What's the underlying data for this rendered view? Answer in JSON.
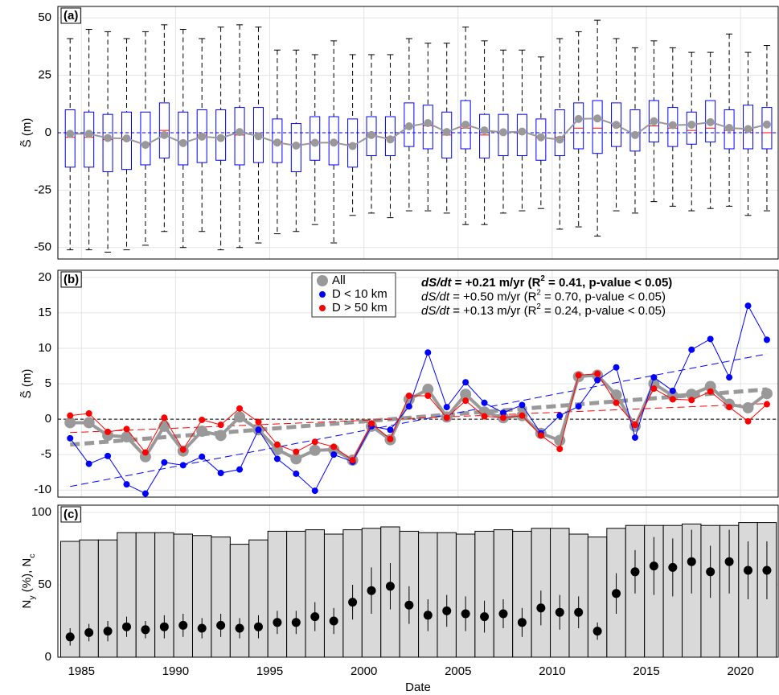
{
  "chart_data": [
    {
      "type": "box",
      "label": "(a)",
      "ylabel": "S̃ (m)",
      "x": [
        1984.4,
        1985.4,
        1986.4,
        1987.4,
        1988.4,
        1989.4,
        1990.4,
        1991.4,
        1992.4,
        1993.4,
        1994.4,
        1995.4,
        1996.4,
        1997.4,
        1998.4,
        1999.4,
        2000.4,
        2001.4,
        2002.4,
        2003.4,
        2004.4,
        2005.4,
        2006.4,
        2007.4,
        2008.4,
        2009.4,
        2010.4,
        2011.4,
        2012.4,
        2013.4,
        2014.4,
        2015.4,
        2016.4,
        2017.4,
        2018.4,
        2019.4,
        2020.4,
        2021.4
      ],
      "whishi": [
        41,
        45,
        44,
        41,
        44,
        47,
        45,
        41,
        46,
        47,
        46,
        36,
        36,
        34,
        40,
        34,
        34,
        34,
        41,
        39,
        39,
        46,
        40,
        36,
        36,
        33,
        41,
        44,
        49,
        41,
        37,
        40,
        37,
        35,
        35,
        43,
        35,
        38
      ],
      "q3": [
        10,
        9,
        8,
        9,
        9,
        13,
        9,
        10,
        10,
        11,
        11,
        6,
        4,
        7,
        7,
        6,
        7,
        7,
        13,
        12,
        9,
        14,
        8,
        8,
        8,
        6,
        10,
        13,
        14,
        13,
        10,
        14,
        11,
        9,
        14,
        10,
        12,
        11
      ],
      "med": [
        -2,
        -2,
        -3,
        -3,
        -5,
        1,
        -4,
        -1,
        -2,
        -1,
        -1,
        -4,
        -5,
        -4,
        -4,
        -5,
        -1,
        -2,
        3,
        3,
        -1,
        2,
        -1,
        0,
        0,
        -2,
        -2,
        2,
        2,
        3,
        0,
        3,
        2,
        1,
        2,
        1,
        1,
        0
      ],
      "q1": [
        -15,
        -15,
        -17,
        -16,
        -14,
        -11,
        -14,
        -13,
        -12,
        -14,
        -13,
        -13,
        -17,
        -12,
        -14,
        -15,
        -10,
        -10,
        -6,
        -7,
        -11,
        -7,
        -11,
        -10,
        -10,
        -12,
        -10,
        -7,
        -9,
        -6,
        -8,
        -4,
        -6,
        -5,
        -4,
        -7,
        -7,
        -7
      ],
      "whislo": [
        -51,
        -51,
        -52,
        -51,
        -49,
        -43,
        -50,
        -43,
        -51,
        -50,
        -48,
        -44,
        -43,
        -40,
        -48,
        -36,
        -35,
        -37,
        -34,
        -34,
        -35,
        -40,
        -40,
        -35,
        -34,
        -33,
        -42,
        -41,
        -45,
        -34,
        -35,
        -30,
        -32,
        -34,
        -33,
        -32,
        -36,
        -34
      ],
      "mean": [
        -0.5,
        -0.5,
        -2.3,
        -2.5,
        -5.3,
        -1,
        -4.5,
        -1.7,
        -2.3,
        0.3,
        -1.5,
        -4.3,
        -5.6,
        -4.4,
        -4.3,
        -5.8,
        -1,
        -2.9,
        2.8,
        4.2,
        0.3,
        3.5,
        1,
        0.2,
        0.5,
        -2,
        -3,
        6,
        6.2,
        3.4,
        -1,
        5,
        3.3,
        3.5,
        4.6,
        2.1,
        1.6,
        3.6
      ],
      "box_color": "#0000ff",
      "median_color": "#ff0000",
      "mean_color": "#999999",
      "hline": 0,
      "hline_color": "#0000cc",
      "xlim": [
        1983.75,
        2022
      ],
      "xticks": [
        1985,
        1990,
        1995,
        2000,
        2005,
        2010,
        2015,
        2020
      ],
      "ylim": [
        -55,
        55
      ],
      "yticks": [
        -50,
        -25,
        0,
        25,
        50
      ],
      "grid": true
    },
    {
      "type": "line",
      "label": "(b)",
      "ylabel": "S̃ (m)",
      "x": [
        1984.4,
        1985.4,
        1986.4,
        1987.4,
        1988.4,
        1989.4,
        1990.4,
        1991.4,
        1992.4,
        1993.4,
        1994.4,
        1995.4,
        1996.4,
        1997.4,
        1998.4,
        1999.4,
        2000.4,
        2001.4,
        2002.4,
        2003.4,
        2004.4,
        2005.4,
        2006.4,
        2007.4,
        2008.4,
        2009.4,
        2010.4,
        2011.4,
        2012.4,
        2013.4,
        2014.4,
        2015.4,
        2016.4,
        2017.4,
        2018.4,
        2019.4,
        2020.4,
        2021.4
      ],
      "trend_x": [
        1984.4,
        2021.4
      ],
      "series": [
        {
          "name": "All",
          "color": "#999999",
          "values": [
            -0.5,
            -0.5,
            -2.3,
            -2.5,
            -5.3,
            -1,
            -4.5,
            -1.7,
            -2.3,
            0.3,
            -1.5,
            -4.3,
            -5.6,
            -4.4,
            -4.3,
            -5.8,
            -1,
            -2.9,
            2.8,
            4.2,
            0.3,
            3.5,
            1,
            0.2,
            0.5,
            -2,
            -3,
            6,
            6.2,
            3.4,
            -1,
            5,
            3.3,
            3.5,
            4.6,
            2.1,
            1.6,
            3.6
          ],
          "trend": [
            -3.6,
            4.2
          ],
          "annotation": [
            {
              "text": "dS/dt",
              "italic": true
            },
            {
              "text": " = +0.21 m/yr (R"
            },
            {
              "text": "2",
              "sup": true
            },
            {
              "text": " = 0.41, p-value < 0.05)"
            }
          ],
          "bold": true
        },
        {
          "name": "D < 10 km",
          "color": "#0000ff",
          "values": [
            -2.7,
            -6.3,
            -5.2,
            -9.2,
            -10.5,
            -6.1,
            -6.5,
            -5.3,
            -7.6,
            -7.1,
            -1.5,
            -5.6,
            -7.7,
            -10.1,
            -5,
            -6,
            -1,
            -1.5,
            1.8,
            9.4,
            1.7,
            5.2,
            2.3,
            0.9,
            2,
            -2,
            0.5,
            1.8,
            5.5,
            7.3,
            -2.6,
            5.9,
            4,
            9.8,
            11.3,
            5.9,
            16,
            11.2
          ],
          "trend": [
            -9.5,
            9.2
          ],
          "annotation": [
            {
              "text": "dS/dt",
              "italic": true
            },
            {
              "text": " = +0.50 m/yr (R"
            },
            {
              "text": "2",
              "sup": true
            },
            {
              "text": " = 0.70, p-value < 0.05)"
            }
          ]
        },
        {
          "name": "D > 50 km",
          "color": "#ff0000",
          "values": [
            0.5,
            0.8,
            -1.8,
            -1.4,
            -4.7,
            0.2,
            -4.3,
            -0.1,
            -0.8,
            1.5,
            -0.4,
            -3.6,
            -4.6,
            -3.2,
            -3.9,
            -5.8,
            -0.6,
            -2.8,
            3.3,
            3.3,
            0.2,
            2.6,
            0.4,
            0.2,
            0.5,
            -2.3,
            -4.2,
            6.2,
            6.4,
            2.3,
            -0.8,
            4.3,
            2.8,
            2.7,
            3.9,
            1.7,
            -0.3,
            2.1
          ],
          "trend": [
            -1.9,
            2.2
          ],
          "annotation": [
            {
              "text": "dS/dt",
              "italic": true
            },
            {
              "text": " = +0.13 m/yr (R"
            },
            {
              "text": "2",
              "sup": true
            },
            {
              "text": " = 0.24, p-value < 0.05)"
            }
          ]
        }
      ],
      "hline": 0,
      "hline_color": "#000000",
      "xlim": [
        1983.75,
        2022
      ],
      "xticks": [
        1985,
        1990,
        1995,
        2000,
        2005,
        2010,
        2015,
        2020
      ],
      "ylim": [
        -11,
        21
      ],
      "yticks": [
        -10,
        -5,
        0,
        5,
        10,
        15,
        20
      ],
      "grid": true
    },
    {
      "type": "bar",
      "label": "(c)",
      "ylabel": [
        {
          "text": "N"
        },
        {
          "text": "y",
          "sub": true
        },
        {
          "text": " (%), "
        },
        {
          "text": "N"
        },
        {
          "text": "c",
          "sub": true
        }
      ],
      "xlabel": "Date",
      "x": [
        1984.4,
        1985.4,
        1986.4,
        1987.4,
        1988.4,
        1989.4,
        1990.4,
        1991.4,
        1992.4,
        1993.4,
        1994.4,
        1995.4,
        1996.4,
        1997.4,
        1998.4,
        1999.4,
        2000.4,
        2001.4,
        2002.4,
        2003.4,
        2004.4,
        2005.4,
        2006.4,
        2007.4,
        2008.4,
        2009.4,
        2010.4,
        2011.4,
        2012.4,
        2013.4,
        2014.4,
        2015.4,
        2016.4,
        2017.4,
        2018.4,
        2019.4,
        2020.4,
        2021.4
      ],
      "values": [
        80,
        81,
        81,
        86,
        86,
        86,
        85,
        84,
        83,
        78,
        81,
        87,
        87,
        88,
        85,
        88,
        89,
        90,
        87,
        86,
        86,
        85,
        87,
        88,
        87,
        89,
        89,
        85,
        83,
        89,
        91,
        91,
        91,
        92,
        91,
        91,
        93,
        93
      ],
      "color": "#d9d9d9",
      "points": {
        "color": "#000000",
        "values": [
          14,
          17,
          18,
          21,
          19,
          21,
          22,
          20,
          22,
          20,
          21,
          24,
          24,
          28,
          25,
          38,
          46,
          49,
          36,
          29,
          32,
          30,
          28,
          30,
          24,
          34,
          31,
          31,
          18,
          44,
          59,
          63,
          62,
          66,
          59,
          66,
          60,
          60
        ],
        "errors": [
          6,
          6,
          7,
          7,
          6,
          8,
          8,
          7,
          8,
          7,
          8,
          8,
          8,
          10,
          9,
          12,
          16,
          16,
          13,
          11,
          11,
          12,
          11,
          10,
          10,
          12,
          12,
          11,
          6,
          14,
          15,
          20,
          20,
          22,
          18,
          22,
          20,
          20
        ]
      },
      "xlim": [
        1983.75,
        2022
      ],
      "xticks": [
        1985,
        1990,
        1995,
        2000,
        2005,
        2010,
        2015,
        2020
      ],
      "ylim": [
        0,
        105
      ],
      "yticks": [
        0,
        50,
        100
      ],
      "grid": true
    }
  ]
}
